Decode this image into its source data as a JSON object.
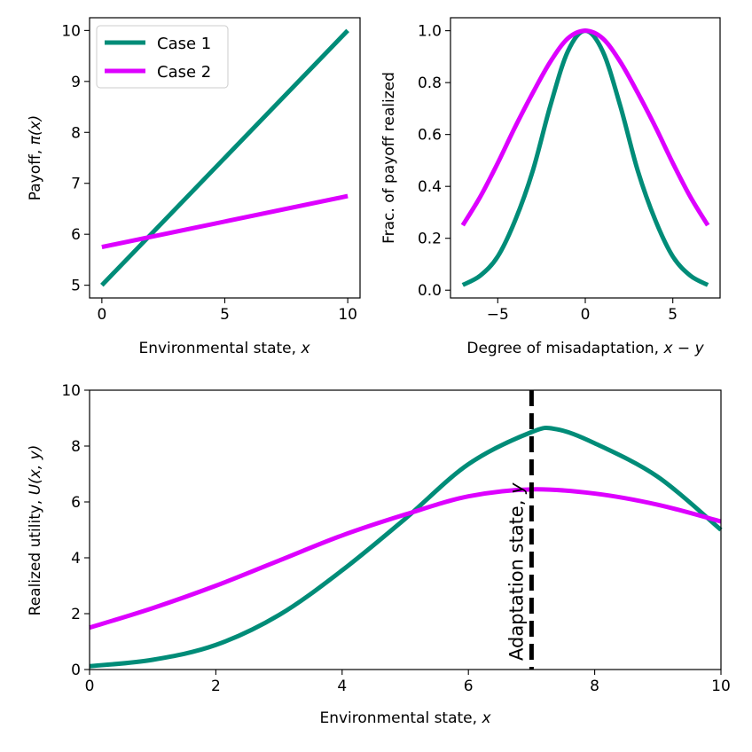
{
  "chart_data": [
    {
      "id": "payoff",
      "type": "line",
      "xlabel": "Environmental state, ",
      "xlabel_var": "x",
      "ylabel": "Payoff, ",
      "ylabel_var": "π(x)",
      "xlim": [
        -0.5,
        10.5
      ],
      "ylim": [
        4.75,
        10.25
      ],
      "xticks": [
        0,
        5,
        10
      ],
      "xtick_labels": [
        "0",
        "5",
        "10"
      ],
      "yticks": [
        5,
        6,
        7,
        8,
        9,
        10
      ],
      "ytick_labels": [
        "5",
        "6",
        "7",
        "8",
        "9",
        "10"
      ],
      "legend": {
        "position": "top-left",
        "entries": [
          "Case 1",
          "Case 2"
        ]
      },
      "series": [
        {
          "name": "Case 1",
          "color": "#008c78",
          "x": [
            0,
            10
          ],
          "y": [
            5,
            10
          ]
        },
        {
          "name": "Case 2",
          "color": "#dd00ff",
          "x": [
            0,
            10
          ],
          "y": [
            5.75,
            6.75
          ]
        }
      ]
    },
    {
      "id": "fraction",
      "type": "line",
      "xlabel": "Degree of misadaptation, ",
      "xlabel_var": "x − y",
      "ylabel": "Frac. of payoff realized",
      "xlim": [
        -7.7,
        7.7
      ],
      "ylim": [
        -0.03,
        1.05
      ],
      "xticks": [
        -5,
        0,
        5
      ],
      "xtick_labels": [
        "−5",
        "0",
        "5"
      ],
      "yticks": [
        0,
        0.2,
        0.4,
        0.6,
        0.8,
        1.0
      ],
      "ytick_labels": [
        "0.0",
        "0.2",
        "0.4",
        "0.6",
        "0.8",
        "1.0"
      ],
      "series": [
        {
          "name": "Case 1",
          "color": "#008c78",
          "x": [
            -7,
            -6,
            -5,
            -4,
            -3,
            -2,
            -1,
            0,
            1,
            2,
            3,
            4,
            5,
            6,
            7
          ],
          "y": [
            0.02,
            0.056,
            0.13,
            0.27,
            0.46,
            0.71,
            0.92,
            1.0,
            0.92,
            0.71,
            0.46,
            0.27,
            0.13,
            0.056,
            0.02
          ]
        },
        {
          "name": "Case 2",
          "color": "#dd00ff",
          "x": [
            -7,
            -6,
            -5,
            -4,
            -3,
            -2,
            -1,
            0,
            1,
            2,
            3,
            4,
            5,
            6,
            7
          ],
          "y": [
            0.25,
            0.36,
            0.49,
            0.63,
            0.76,
            0.88,
            0.97,
            1.0,
            0.97,
            0.88,
            0.76,
            0.63,
            0.49,
            0.36,
            0.25
          ]
        }
      ]
    },
    {
      "id": "utility",
      "type": "line",
      "xlabel": "Environmental state, ",
      "xlabel_var": "x",
      "ylabel": "Realized utility, ",
      "ylabel_var": "U(x, y)",
      "xlim": [
        0,
        10
      ],
      "ylim": [
        0,
        10
      ],
      "xticks": [
        0,
        2,
        4,
        6,
        8,
        10
      ],
      "xtick_labels": [
        "0",
        "2",
        "4",
        "6",
        "8",
        "10"
      ],
      "yticks": [
        0,
        2,
        4,
        6,
        8,
        10
      ],
      "ytick_labels": [
        "0",
        "2",
        "4",
        "6",
        "8",
        "10"
      ],
      "vline": {
        "x": 7,
        "label": "Adaptation state, ",
        "label_var": "y"
      },
      "series": [
        {
          "name": "Case 1",
          "color": "#008c78",
          "x": [
            0,
            1,
            2,
            3,
            4,
            5,
            6,
            7,
            7.4,
            8,
            9,
            10
          ],
          "y": [
            0.12,
            0.35,
            0.88,
            1.95,
            3.55,
            5.4,
            7.35,
            8.5,
            8.6,
            8.1,
            6.9,
            5.0
          ]
        },
        {
          "name": "Case 2",
          "color": "#dd00ff",
          "x": [
            0,
            1,
            2,
            3,
            4,
            5,
            6,
            7,
            8,
            9,
            10
          ],
          "y": [
            1.5,
            2.2,
            3.0,
            3.9,
            4.8,
            5.55,
            6.2,
            6.45,
            6.3,
            5.9,
            5.3
          ]
        }
      ]
    }
  ]
}
